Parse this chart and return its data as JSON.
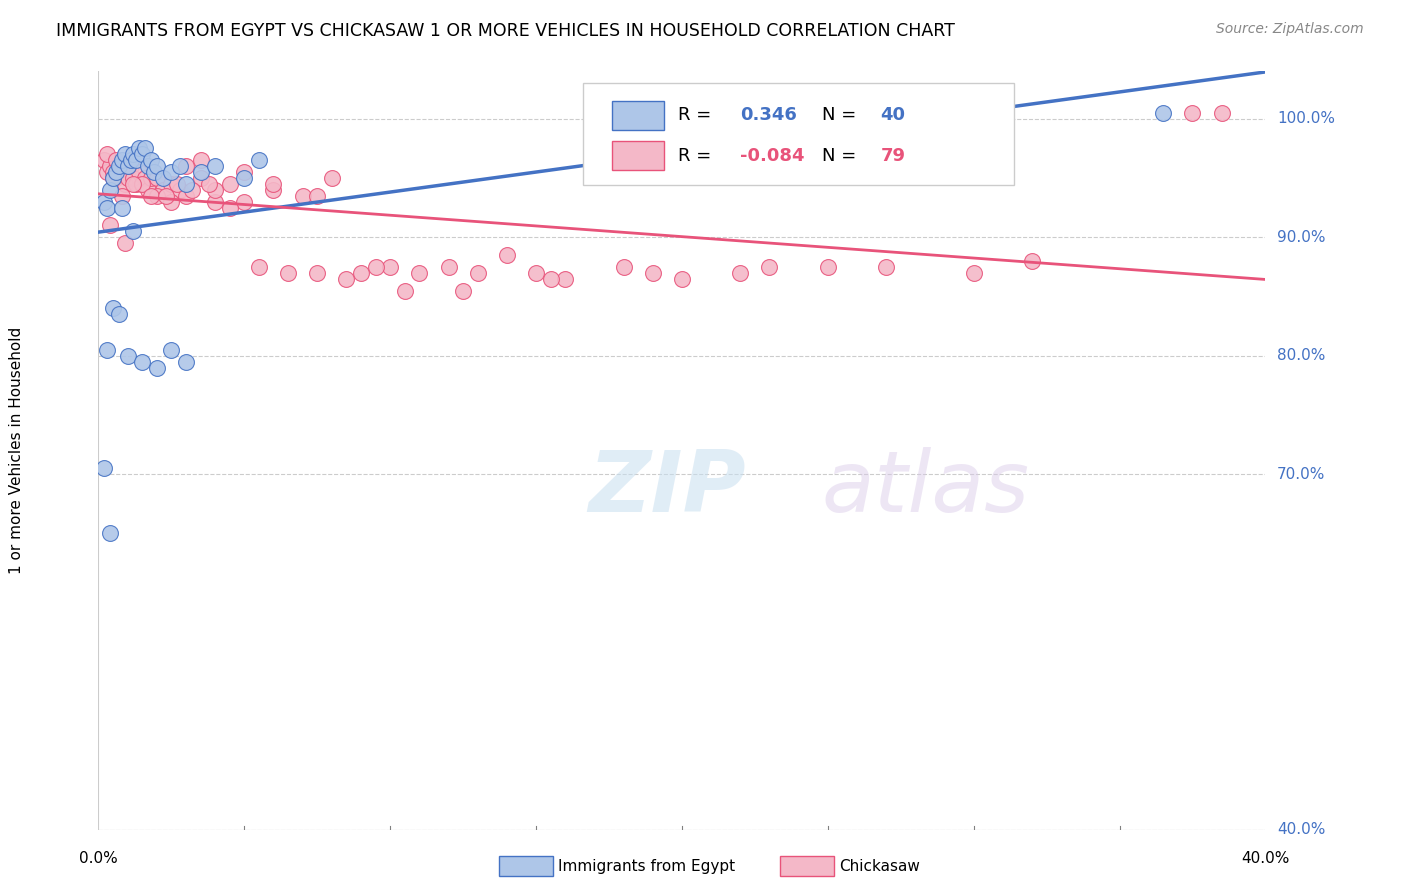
{
  "title": "IMMIGRANTS FROM EGYPT VS CHICKASAW 1 OR MORE VEHICLES IN HOUSEHOLD CORRELATION CHART",
  "source": "Source: ZipAtlas.com",
  "ylabel": "1 or more Vehicles in Household",
  "y_ticks": [
    40.0,
    70.0,
    80.0,
    90.0,
    100.0
  ],
  "y_tick_labels": [
    "40.0%",
    "70.0%",
    "80.0%",
    "90.0%",
    "100.0%"
  ],
  "xmin": 0.0,
  "xmax": 40.0,
  "ymin": 40.0,
  "ymax": 104.0,
  "legend_blue_label": "Immigrants from Egypt",
  "legend_pink_label": "Chickasaw",
  "R_blue": "0.346",
  "N_blue": "40",
  "R_pink": "-0.084",
  "N_pink": "79",
  "blue_color": "#aec6e8",
  "blue_line_color": "#4472c4",
  "pink_color": "#f4b8c8",
  "pink_line_color": "#e8537a",
  "watermark_zip": "ZIP",
  "watermark_atlas": "atlas",
  "blue_scatter_x": [
    0.2,
    0.3,
    0.4,
    0.5,
    0.6,
    0.7,
    0.8,
    0.9,
    1.0,
    1.1,
    1.2,
    1.3,
    1.4,
    1.5,
    1.6,
    1.7,
    1.8,
    1.9,
    2.0,
    2.2,
    2.5,
    2.8,
    3.0,
    3.5,
    4.0,
    5.0,
    0.3,
    0.5,
    0.7,
    1.0,
    1.5,
    2.0,
    3.0,
    0.2,
    0.4,
    0.8,
    1.2,
    2.5,
    5.5,
    36.5
  ],
  "blue_scatter_y": [
    93.0,
    92.5,
    94.0,
    95.0,
    95.5,
    96.0,
    96.5,
    97.0,
    96.0,
    96.5,
    97.0,
    96.5,
    97.5,
    97.0,
    97.5,
    96.0,
    96.5,
    95.5,
    96.0,
    95.0,
    95.5,
    96.0,
    94.5,
    95.5,
    96.0,
    95.0,
    80.5,
    84.0,
    83.5,
    80.0,
    79.5,
    79.0,
    79.5,
    70.5,
    65.0,
    92.5,
    90.5,
    80.5,
    96.5,
    100.5
  ],
  "pink_scatter_x": [
    0.2,
    0.3,
    0.4,
    0.5,
    0.6,
    0.7,
    0.8,
    0.9,
    1.0,
    1.1,
    1.2,
    1.3,
    1.4,
    1.5,
    1.6,
    1.7,
    1.8,
    2.0,
    2.2,
    2.5,
    2.8,
    3.0,
    3.5,
    4.0,
    4.5,
    5.0,
    6.0,
    7.0,
    8.0,
    9.0,
    10.0,
    11.0,
    12.0,
    13.0,
    14.0,
    15.0,
    16.0,
    18.0,
    20.0,
    22.0,
    25.0,
    30.0,
    0.3,
    0.6,
    1.0,
    1.5,
    2.0,
    2.5,
    3.0,
    3.5,
    4.0,
    5.0,
    6.0,
    7.5,
    9.5,
    0.5,
    0.8,
    1.2,
    1.8,
    2.3,
    2.7,
    3.2,
    3.8,
    4.5,
    5.5,
    6.5,
    7.5,
    8.5,
    10.5,
    12.5,
    15.5,
    19.0,
    23.0,
    27.0,
    32.0,
    37.5,
    38.5,
    0.4,
    0.9
  ],
  "pink_scatter_y": [
    96.5,
    95.5,
    96.0,
    95.5,
    95.0,
    95.5,
    96.0,
    94.5,
    95.0,
    96.0,
    95.0,
    94.5,
    95.5,
    94.5,
    95.0,
    94.0,
    95.0,
    95.0,
    94.0,
    94.5,
    94.0,
    93.5,
    95.0,
    93.0,
    94.5,
    95.5,
    94.0,
    93.5,
    95.0,
    87.0,
    87.5,
    87.0,
    87.5,
    87.0,
    88.5,
    87.0,
    86.5,
    87.5,
    86.5,
    87.0,
    87.5,
    87.0,
    97.0,
    96.5,
    96.0,
    94.5,
    93.5,
    93.0,
    96.0,
    96.5,
    94.0,
    93.0,
    94.5,
    93.5,
    87.5,
    95.0,
    93.5,
    94.5,
    93.5,
    93.5,
    94.5,
    94.0,
    94.5,
    92.5,
    87.5,
    87.0,
    87.0,
    86.5,
    85.5,
    85.5,
    86.5,
    87.0,
    87.5,
    87.5,
    88.0,
    100.5,
    100.5,
    91.0,
    89.5
  ]
}
